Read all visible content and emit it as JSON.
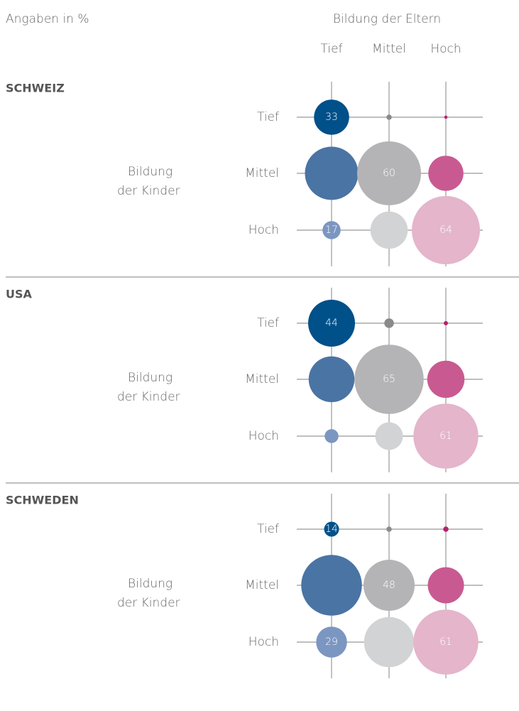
{
  "header": {
    "note": "Angaben in %",
    "column_title": "Bildung der Eltern",
    "columns": [
      "Tief",
      "Mittel",
      "Hoch"
    ]
  },
  "chart_data": [
    {
      "type": "bubble",
      "title": "SCHWEIZ",
      "row_title": [
        "Bildung",
        "der Kinder"
      ],
      "categories": [
        "Tief",
        "Mittel",
        "Hoch"
      ],
      "series": [
        {
          "colors": [
            "#00508a",
            "#4a74a4",
            "#7b96c0"
          ],
          "values": [
            33,
            50,
            17
          ],
          "value_labels": [
            "33",
            null,
            "17"
          ]
        },
        {
          "colors": [
            "#8a8a8c",
            "#b4b4b6",
            "#d2d3d5"
          ],
          "values": [
            5,
            60,
            35
          ],
          "value_labels": [
            null,
            "60",
            null
          ]
        },
        {
          "colors": [
            "#b8206e",
            "#c95a91",
            "#e4b5cb"
          ],
          "values": [
            3,
            33,
            64
          ],
          "value_labels": [
            null,
            null,
            "64"
          ]
        }
      ]
    },
    {
      "type": "bubble",
      "title": "USA",
      "row_title": [
        "Bildung",
        "der Kinder"
      ],
      "categories": [
        "Tief",
        "Mittel",
        "Hoch"
      ],
      "series": [
        {
          "colors": [
            "#00508a",
            "#4a74a4",
            "#7b96c0"
          ],
          "values": [
            44,
            43,
            13
          ],
          "value_labels": [
            "44",
            null,
            null
          ]
        },
        {
          "colors": [
            "#8a8a8c",
            "#b4b4b6",
            "#d2d3d5"
          ],
          "values": [
            9,
            65,
            26
          ],
          "value_labels": [
            null,
            "65",
            null
          ]
        },
        {
          "colors": [
            "#b8206e",
            "#c95a91",
            "#e4b5cb"
          ],
          "values": [
            4,
            35,
            61
          ],
          "value_labels": [
            null,
            null,
            "61"
          ]
        }
      ]
    },
    {
      "type": "bubble",
      "title": "SCHWEDEN",
      "row_title": [
        "Bildung",
        "der Kinder"
      ],
      "categories": [
        "Tief",
        "Mittel",
        "Hoch"
      ],
      "series": [
        {
          "colors": [
            "#00508a",
            "#4a74a4",
            "#7b96c0"
          ],
          "values": [
            14,
            57,
            29
          ],
          "value_labels": [
            "14",
            null,
            "29"
          ]
        },
        {
          "colors": [
            "#8a8a8c",
            "#b4b4b6",
            "#d2d3d5"
          ],
          "values": [
            5,
            48,
            47
          ],
          "value_labels": [
            null,
            "48",
            null
          ]
        },
        {
          "colors": [
            "#b8206e",
            "#c95a91",
            "#e4b5cb"
          ],
          "values": [
            5,
            34,
            61
          ],
          "value_labels": [
            null,
            null,
            "61"
          ]
        }
      ]
    }
  ]
}
